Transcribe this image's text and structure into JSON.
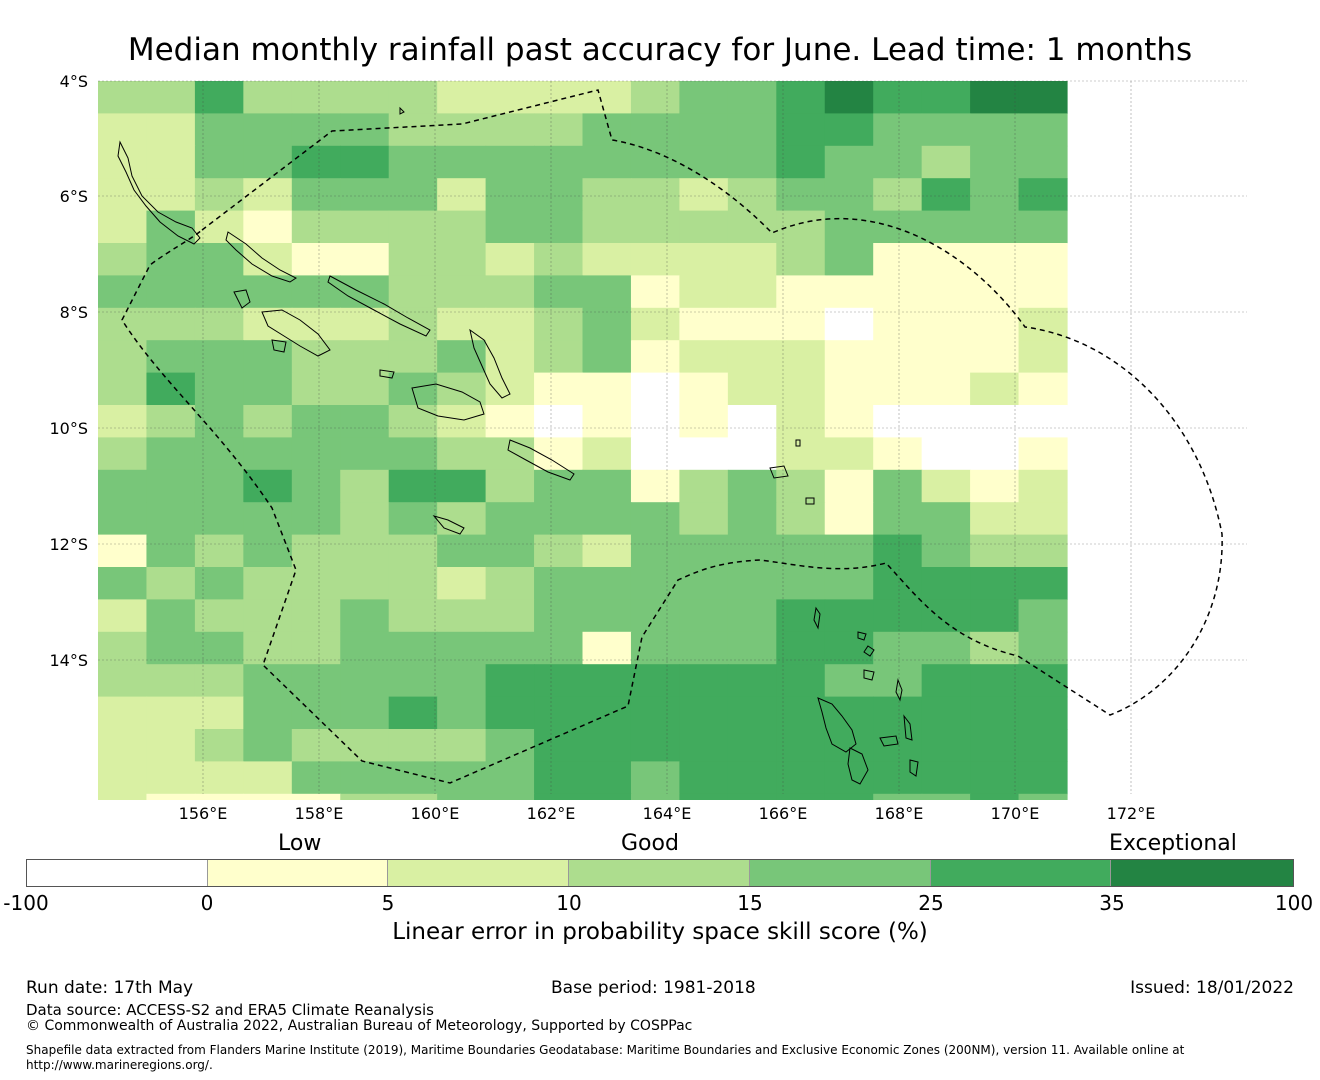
{
  "title": "Median monthly rainfall past accuracy for June. Lead time: 1 months",
  "map": {
    "lat_labels": [
      "4°S",
      "6°S",
      "8°S",
      "10°S",
      "12°S",
      "14°S"
    ],
    "lon_labels": [
      "156°E",
      "158°E",
      "160°E",
      "162°E",
      "164°E",
      "166°E",
      "168°E",
      "170°E",
      "172°E"
    ],
    "levels": [
      "#ffffff",
      "#ffffcc",
      "#d9f0a3",
      "#addd8e",
      "#78c679",
      "#41ab5d",
      "#238443"
    ],
    "grid_rows": [
      "33533332222344565566",
      "22444433334444554444",
      "22445544444444544344",
      "22324442443323443545",
      "24213333443333344444",
      "34421133232222341111",
      "44444433344122111111",
      "33322232234211101112",
      "34443334234122211112",
      "35443343211012211121",
      "23434432101010210000",
      "34444443312000221001",
      "44454355344134314212",
      "44444343444434314422",
      "14343334432444445433",
      "43433332344444445555",
      "24333433344444555554",
      "34433444441444554434",
      "33344444555555544555",
      "22244454555555555555",
      "22343333455555555555",
      "22224444455455555555",
      "21111334455455554454",
      "21111444555545544454"
    ]
  },
  "colorbar": {
    "categories": [
      "Low",
      "Good",
      "Exceptional"
    ],
    "colors": [
      "#ffffff",
      "#ffffcc",
      "#d9f0a3",
      "#addd8e",
      "#78c679",
      "#41ab5d",
      "#238443"
    ],
    "ticks": [
      "-100",
      "0",
      "5",
      "10",
      "15",
      "25",
      "35",
      "100"
    ],
    "label": "Linear error in probability space skill score (%)"
  },
  "footer": {
    "run_date": "Run date: 17th May",
    "base_period": "Base period: 1981-2018",
    "issued": "Issued: 18/01/2022",
    "data_source": "Data source: ACCESS-S2 and ERA5 Climate Reanalysis",
    "copyright": "© Commonwealth of Australia 2022, Australian Bureau of Meteorology, Supported by COSPPac",
    "shapefile_line1": "Shapefile data extracted from Flanders Marine Institute (2019), Maritime Boundaries Geodatabase: Maritime Boundaries and Exclusive Economic Zones (200NM), version 11. Available online at",
    "shapefile_line2": "http://www.marineregions.org/."
  }
}
